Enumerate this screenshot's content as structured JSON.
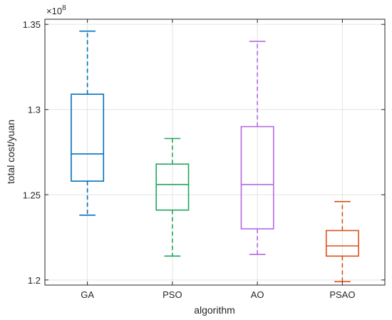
{
  "chart_data": {
    "type": "box",
    "title": "",
    "xlabel": "algorithm",
    "ylabel": "total cost/yuan",
    "y_exponent_base": "×10",
    "y_exponent_power": "8",
    "ylim": [
      1.197,
      1.353
    ],
    "yticks": [
      1.2,
      1.25,
      1.3,
      1.35
    ],
    "ytick_labels": [
      "1.2",
      "1.25",
      "1.3",
      "1.35"
    ],
    "grid": true,
    "categories": [
      "GA",
      "PSO",
      "AO",
      "PSAO"
    ],
    "boxes": [
      {
        "name": "GA",
        "color": "#0072bd",
        "whisker_low": 1.238,
        "q1": 1.258,
        "median": 1.274,
        "q3": 1.309,
        "whisker_high": 1.346
      },
      {
        "name": "PSO",
        "color": "#21a65b",
        "whisker_low": 1.214,
        "q1": 1.241,
        "median": 1.256,
        "q3": 1.268,
        "whisker_high": 1.283
      },
      {
        "name": "AO",
        "color": "#b36ae2",
        "whisker_low": 1.215,
        "q1": 1.23,
        "median": 1.256,
        "q3": 1.29,
        "whisker_high": 1.34
      },
      {
        "name": "PSAO",
        "color": "#d95319",
        "whisker_low": 1.199,
        "q1": 1.214,
        "median": 1.22,
        "q3": 1.229,
        "whisker_high": 1.246
      }
    ]
  }
}
